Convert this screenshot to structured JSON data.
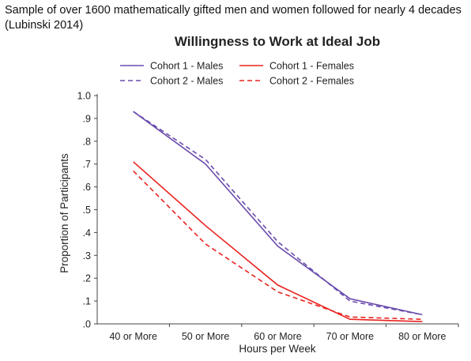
{
  "caption": {
    "line1": "Sample of over 1600 mathematically gifted men and women followed for nearly 4 decades",
    "line2": "(Lubinski 2014)"
  },
  "chart_data": {
    "type": "line",
    "title": "Willingness to Work at Ideal Job",
    "xlabel": "Hours per Week",
    "ylabel": "Proportion of Participants",
    "categories": [
      "40 or More",
      "50 or More",
      "60 or More",
      "70 or More",
      "80 or More"
    ],
    "ylim": [
      0,
      1.0
    ],
    "yticks": [
      ".0",
      ".1",
      ".2",
      ".3",
      ".4",
      ".5",
      ".6",
      ".7",
      ".8",
      ".9",
      "1.0"
    ],
    "grid": false,
    "legend_position": "top",
    "series": [
      {
        "name": "Cohort 1 - Males",
        "color": "#6a4cad",
        "dash": "solid",
        "values": [
          0.93,
          0.7,
          0.34,
          0.11,
          0.04
        ]
      },
      {
        "name": "Cohort 2 - Males",
        "color": "#6a4cad",
        "dash": "dashed",
        "values": [
          0.93,
          0.72,
          0.36,
          0.1,
          0.04
        ]
      },
      {
        "name": "Cohort 1 - Females",
        "color": "#e8231f",
        "dash": "solid",
        "values": [
          0.71,
          0.43,
          0.17,
          0.02,
          0.01
        ]
      },
      {
        "name": "Cohort 2 - Females",
        "color": "#e8231f",
        "dash": "dashed",
        "values": [
          0.67,
          0.35,
          0.14,
          0.03,
          0.02
        ]
      }
    ]
  }
}
